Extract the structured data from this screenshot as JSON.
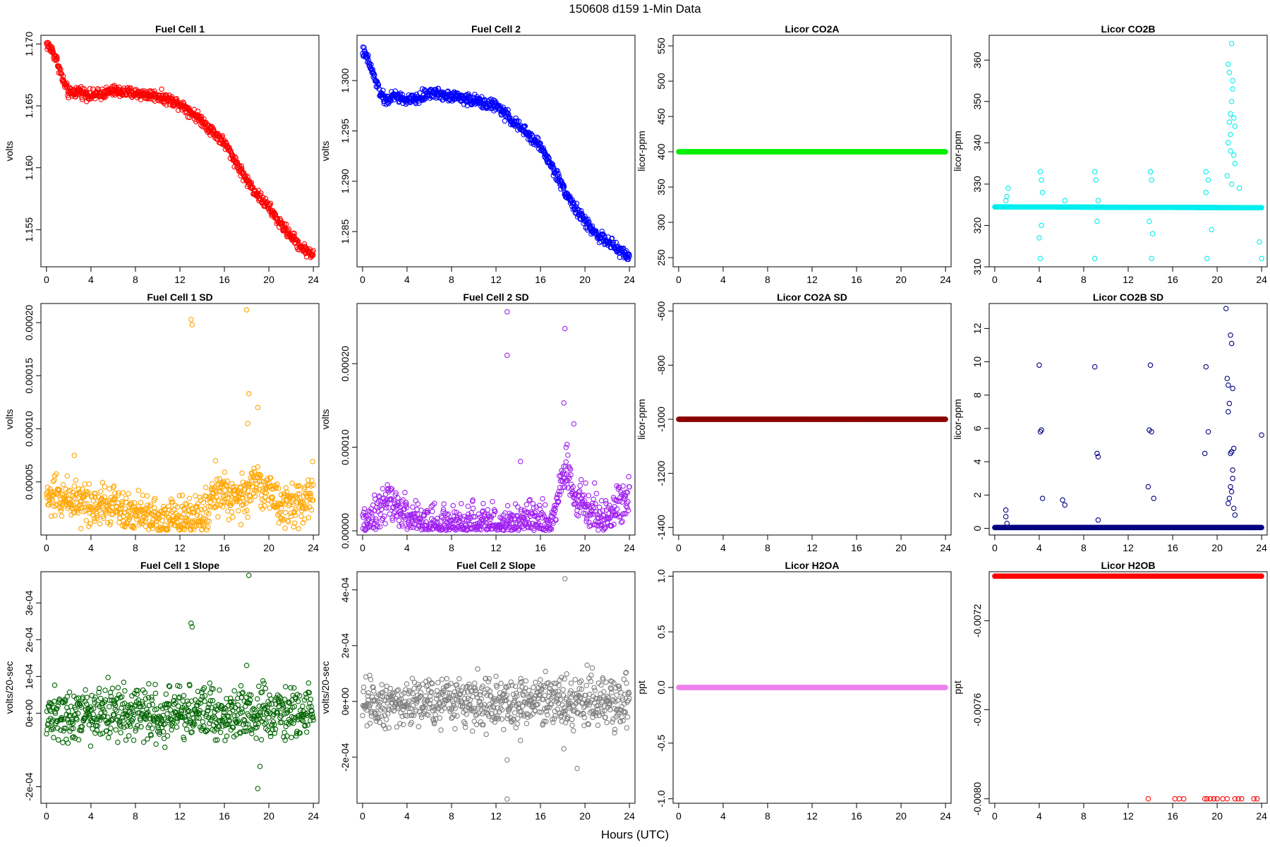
{
  "figure": {
    "title": "150608   d159   1-Min Data",
    "xlabel": "Hours (UTC)"
  },
  "chart_data": [
    {
      "type": "scatter",
      "title": "Fuel Cell 1",
      "ylabel": "volts",
      "color": "#ff0000",
      "xlim": [
        -0.5,
        24.5
      ],
      "ylim": [
        1.152,
        1.1707
      ],
      "xticks": [
        0,
        4,
        8,
        12,
        16,
        20,
        24
      ],
      "yticks": [
        1.155,
        1.16,
        1.165,
        1.17
      ],
      "yticklabels": [
        "1.155",
        "1.160",
        "1.165",
        "1.170"
      ],
      "series": [
        {
          "x": [
            0.0,
            0.5,
            1.0,
            1.5,
            2.0,
            3.0,
            4.0,
            5.0,
            6.0,
            8.0,
            10.0,
            12.0,
            13.0,
            14.0,
            16.0,
            17.0,
            18.0,
            19.0,
            20.0,
            21.0,
            22.0,
            23.0,
            24.0
          ],
          "y": [
            1.17,
            1.1695,
            1.1685,
            1.167,
            1.166,
            1.1662,
            1.1658,
            1.166,
            1.1662,
            1.166,
            1.1658,
            1.1652,
            1.1645,
            1.1638,
            1.162,
            1.1605,
            1.159,
            1.1578,
            1.1568,
            1.1555,
            1.1545,
            1.1535,
            1.153
          ]
        }
      ]
    },
    {
      "type": "scatter",
      "title": "Fuel Cell 2",
      "ylabel": "volts",
      "color": "#0000ff",
      "xlim": [
        -0.5,
        24.5
      ],
      "ylim": [
        1.2815,
        1.3045
      ],
      "xticks": [
        0,
        4,
        8,
        12,
        16,
        20,
        24
      ],
      "yticks": [
        1.285,
        1.29,
        1.295,
        1.3
      ],
      "yticklabels": [
        "1.285",
        "1.290",
        "1.295",
        "1.300"
      ],
      "series": [
        {
          "x": [
            0.0,
            0.5,
            1.0,
            1.5,
            2.0,
            3.0,
            4.0,
            5.0,
            6.0,
            8.0,
            10.0,
            12.0,
            13.0,
            14.0,
            16.0,
            17.0,
            18.0,
            19.0,
            20.0,
            21.0,
            22.0,
            23.0,
            24.0
          ],
          "y": [
            1.303,
            1.302,
            1.3005,
            1.299,
            1.298,
            1.2985,
            1.298,
            1.2982,
            1.2988,
            1.2985,
            1.298,
            1.2975,
            1.2965,
            1.2955,
            1.2935,
            1.2915,
            1.2895,
            1.2875,
            1.286,
            1.2848,
            1.284,
            1.2832,
            1.2825
          ]
        }
      ]
    },
    {
      "type": "scatter",
      "title": "Licor CO2A",
      "ylabel": "licor-ppm",
      "color": "#00ee00",
      "xlim": [
        -0.5,
        24.5
      ],
      "ylim": [
        237,
        565
      ],
      "xticks": [
        0,
        4,
        8,
        12,
        16,
        20,
        24
      ],
      "yticks": [
        250,
        300,
        350,
        400,
        450,
        500,
        550
      ],
      "yticklabels": [
        "250",
        "300",
        "350",
        "400",
        "450",
        "500",
        "550"
      ],
      "series": [
        {
          "x": [
            0,
            24
          ],
          "y": [
            400,
            400
          ]
        }
      ]
    },
    {
      "type": "scatter",
      "title": "Licor CO2B",
      "ylabel": "licor-ppm",
      "color": "#00eeee",
      "xlim": [
        -0.5,
        24.5
      ],
      "ylim": [
        310,
        366
      ],
      "xticks": [
        0,
        4,
        8,
        12,
        16,
        20,
        24
      ],
      "yticks": [
        310,
        320,
        330,
        340,
        350,
        360
      ],
      "yticklabels": [
        "310",
        "320",
        "330",
        "340",
        "350",
        "360"
      ],
      "series": [
        {
          "x": [
            0,
            24
          ],
          "y": [
            324.5,
            324.3
          ]
        }
      ],
      "outliers": {
        "x": [
          1.0,
          1.1,
          1.2,
          4.1,
          4.2,
          4.3,
          4.1,
          4.0,
          4.2,
          6.3,
          9.0,
          9.1,
          9.2,
          9.0,
          9.3,
          14.0,
          14.1,
          13.9,
          14.2,
          14.1,
          19.0,
          19.2,
          19.1,
          19.5,
          19.0,
          20.9,
          21.0,
          21.1,
          21.2,
          21.3,
          21.4,
          21.5,
          21.6,
          21.0,
          21.2,
          21.4,
          21.3,
          21.1,
          21.5,
          21.6,
          21.2,
          21.3,
          22.0,
          23.8,
          24.0
        ],
        "y": [
          326,
          327,
          329,
          333,
          331,
          328,
          312,
          317,
          320,
          326,
          333,
          331,
          321,
          312,
          326,
          333,
          331,
          321,
          318,
          312,
          333,
          331,
          312,
          319,
          328,
          332,
          340,
          345,
          338,
          350,
          355,
          346,
          344,
          359,
          347,
          353,
          364,
          357,
          337,
          335,
          342,
          330,
          329,
          316,
          312
        ]
      }
    },
    {
      "type": "scatter",
      "title": "Fuel Cell 1 SD",
      "ylabel": "volts",
      "color": "#ffa500",
      "xlim": [
        -0.5,
        24.5
      ],
      "ylim": [
        0.0,
        0.000218
      ],
      "xticks": [
        0,
        4,
        8,
        12,
        16,
        20,
        24
      ],
      "yticks": [
        5e-05,
        0.0001,
        0.00015,
        0.0002
      ],
      "yticklabels": [
        "0.00005",
        "0.00010",
        "0.00015",
        "0.00020"
      ],
      "series": [
        {
          "x": [
            0,
            2,
            4,
            6,
            8,
            10,
            12,
            14,
            15,
            16,
            17,
            18,
            19,
            20,
            21,
            22,
            23,
            24
          ],
          "y": [
            3.5e-05,
            3.5e-05,
            3e-05,
            3e-05,
            2e-05,
            1.5e-05,
            1.5e-05,
            2e-05,
            3.5e-05,
            4e-05,
            3e-05,
            4e-05,
            5e-05,
            4e-05,
            3e-05,
            2.5e-05,
            3e-05,
            4.5e-05
          ]
        }
      ],
      "outliers": {
        "x": [
          13.0,
          13.1,
          18.0,
          18.2,
          18.1,
          19.0,
          15.2,
          2.5
        ],
        "y": [
          0.000203,
          0.000198,
          0.000212,
          0.000133,
          0.000105,
          0.00012,
          7e-05,
          7.5e-05
        ]
      }
    },
    {
      "type": "scatter",
      "title": "Fuel Cell 2 SD",
      "ylabel": "volts",
      "color": "#a020f0",
      "xlim": [
        -0.5,
        24.5
      ],
      "ylim": [
        -5e-06,
        0.000272
      ],
      "xticks": [
        0,
        4,
        8,
        12,
        16,
        20,
        24
      ],
      "yticks": [
        0.0,
        0.0001,
        0.0002
      ],
      "yticklabels": [
        "0.00000",
        "0.00010",
        "0.00020"
      ],
      "series": [
        {
          "x": [
            0,
            1,
            2,
            3,
            4,
            5,
            6,
            8,
            10,
            12,
            14,
            15,
            16,
            17,
            18,
            18.5,
            19,
            20,
            21,
            22,
            23,
            24
          ],
          "y": [
            8e-06,
            2e-05,
            4e-05,
            3e-05,
            2e-05,
            1.2e-05,
            8e-06,
            5e-06,
            5e-06,
            5e-06,
            1e-05,
            1.5e-05,
            1e-05,
            1e-05,
            6e-05,
            8e-05,
            4e-05,
            3e-05,
            2e-05,
            1.5e-05,
            3e-05,
            4.5e-05
          ]
        }
      ],
      "outliers": {
        "x": [
          13.0,
          13.0,
          18.2,
          18.1,
          19.0,
          14.2,
          18.3
        ],
        "y": [
          0.000262,
          0.00021,
          0.000242,
          0.000153,
          0.000128,
          8.3e-05,
          0.0001
        ]
      }
    },
    {
      "type": "scatter",
      "title": "Licor CO2A SD",
      "ylabel": "licor-ppm",
      "color": "#8b0000",
      "xlim": [
        -0.5,
        24.5
      ],
      "ylim": [
        -1428,
        -572
      ],
      "xticks": [
        0,
        4,
        8,
        12,
        16,
        20,
        24
      ],
      "yticks": [
        -1400,
        -1200,
        -1000,
        -800,
        -600
      ],
      "yticklabels": [
        "-1400",
        "-1200",
        "-1000",
        "-800",
        "-600"
      ],
      "series": [
        {
          "x": [
            0,
            24
          ],
          "y": [
            -1000,
            -1000
          ]
        }
      ]
    },
    {
      "type": "scatter",
      "title": "Licor CO2B SD",
      "ylabel": "licor-ppm",
      "color": "#000080",
      "xlim": [
        -0.5,
        24.5
      ],
      "ylim": [
        -0.4,
        13.5
      ],
      "xticks": [
        0,
        4,
        8,
        12,
        16,
        20,
        24
      ],
      "yticks": [
        0,
        2,
        4,
        6,
        8,
        10,
        12
      ],
      "yticklabels": [
        "0",
        "2",
        "4",
        "6",
        "8",
        "10",
        "12"
      ],
      "series": [
        {
          "x": [
            0,
            24
          ],
          "y": [
            0.05,
            0.05
          ]
        }
      ],
      "outliers": {
        "x": [
          1.0,
          1.0,
          1.1,
          4.0,
          4.1,
          4.2,
          4.3,
          6.1,
          6.3,
          9.0,
          9.2,
          9.3,
          9.3,
          14.0,
          14.1,
          13.9,
          14.3,
          13.8,
          19.0,
          19.2,
          18.9,
          20.8,
          20.9,
          21.0,
          21.1,
          21.2,
          21.3,
          21.4,
          21.5,
          21.0,
          21.2,
          21.4,
          21.3,
          21.1,
          21.5,
          21.6,
          21.2,
          21.3,
          21.4,
          21.0,
          24.0
        ],
        "y": [
          1.1,
          0.7,
          0.3,
          9.8,
          5.8,
          5.9,
          1.8,
          1.7,
          1.4,
          9.7,
          4.5,
          4.3,
          0.5,
          9.8,
          5.8,
          5.9,
          1.8,
          2.5,
          9.7,
          5.8,
          4.5,
          13.2,
          9.0,
          8.6,
          7.5,
          11.6,
          11.1,
          8.4,
          4.8,
          7.0,
          4.5,
          3.5,
          2.2,
          1.8,
          1.2,
          0.8,
          2.5,
          4.6,
          3.0,
          1.5,
          5.6
        ]
      }
    },
    {
      "type": "scatter",
      "title": "Fuel Cell 1 Slope",
      "ylabel": "volts/20-sec",
      "color": "#006400",
      "xlim": [
        -0.5,
        24.5
      ],
      "ylim": [
        -0.000245,
        0.000385
      ],
      "xticks": [
        0,
        4,
        8,
        12,
        16,
        20,
        24
      ],
      "yticks": [
        -0.0002,
        0.0,
        0.0001,
        0.0002,
        0.0003
      ],
      "yticklabels": [
        "-2e-04",
        "0e+00",
        "1e-04",
        "2e-04",
        "3e-04"
      ],
      "series": [
        {
          "x": [
            0,
            2,
            4,
            6,
            8,
            10,
            12,
            14,
            16,
            17,
            18,
            19,
            20,
            21,
            22,
            23,
            24
          ],
          "y": [
            0.0,
            0.0,
            0.0,
            0.0,
            0.0,
            0.0,
            0.0,
            0.0,
            0.0,
            0.0,
            0.0,
            0.0,
            0.0,
            0.0,
            0.0,
            0.0,
            0.0
          ]
        }
      ],
      "outliers": {
        "x": [
          13.0,
          13.1,
          18.2,
          19.0,
          19.2,
          9.2,
          11.8,
          18.0
        ],
        "y": [
          0.000245,
          0.000235,
          0.000375,
          -0.000205,
          -0.000145,
          8e-05,
          7.5e-05,
          0.00013
        ]
      }
    },
    {
      "type": "scatter",
      "title": "Fuel Cell 2 Slope",
      "ylabel": "volts/20-sec",
      "color": "#808080",
      "xlim": [
        -0.5,
        24.5
      ],
      "ylim": [
        -0.000365,
        0.000465
      ],
      "xticks": [
        0,
        4,
        8,
        12,
        16,
        20,
        24
      ],
      "yticks": [
        -0.0002,
        0.0,
        0.0002,
        0.0004
      ],
      "yticklabels": [
        "-2e-04",
        "0e+00",
        "2e-04",
        "4e-04"
      ],
      "series": [
        {
          "x": [
            0,
            2,
            4,
            6,
            8,
            10,
            12,
            14,
            16,
            17,
            18,
            19,
            20,
            21,
            22,
            23,
            24
          ],
          "y": [
            0.0,
            0.0,
            0.0,
            0.0,
            0.0,
            0.0,
            0.0,
            0.0,
            0.0,
            0.0,
            0.0,
            0.0,
            0.0,
            0.0,
            0.0,
            0.0,
            0.0
          ]
        }
      ],
      "outliers": {
        "x": [
          13.0,
          13.0,
          18.2,
          14.2,
          19.3,
          18.1,
          20.2,
          12.0
        ],
        "y": [
          -0.00035,
          -0.00021,
          0.00044,
          -0.00014,
          -0.00024,
          -0.00017,
          0.00013,
          9e-05
        ]
      }
    },
    {
      "type": "scatter",
      "title": "Licor H2OA",
      "ylabel": "ppt",
      "color": "#ee82ee",
      "xlim": [
        -0.5,
        24.5
      ],
      "ylim": [
        -1.04,
        1.04
      ],
      "xticks": [
        0,
        4,
        8,
        12,
        16,
        20,
        24
      ],
      "yticks": [
        -1.0,
        -0.5,
        0.0,
        0.5,
        1.0
      ],
      "yticklabels": [
        "-1.0",
        "-0.5",
        "0.0",
        "0.5",
        "1.0"
      ],
      "series": [
        {
          "x": [
            0,
            24
          ],
          "y": [
            0,
            0
          ]
        }
      ]
    },
    {
      "type": "scatter",
      "title": "Licor H2OB",
      "ylabel": "ppt",
      "color": "#ff0000",
      "xlim": [
        -0.5,
        24.5
      ],
      "ylim": [
        -0.00802,
        -0.00698
      ],
      "xticks": [
        0,
        4,
        8,
        12,
        16,
        20,
        24
      ],
      "yticks": [
        -0.008,
        -0.0076,
        -0.0072
      ],
      "yticklabels": [
        "-0.0080",
        "-0.0076",
        "-0.0072"
      ],
      "series": [
        {
          "x": [
            0,
            24
          ],
          "y": [
            -0.007,
            -0.007
          ]
        }
      ],
      "outliers": {
        "x": [
          13.8,
          16.2,
          16.6,
          17.0,
          18.9,
          19.1,
          19.4,
          19.7,
          20.0,
          20.5,
          20.9,
          21.6,
          21.9,
          22.2,
          23.3,
          23.6
        ],
        "y": [
          -0.008,
          -0.008,
          -0.008,
          -0.008,
          -0.008,
          -0.008,
          -0.008,
          -0.008,
          -0.008,
          -0.008,
          -0.008,
          -0.008,
          -0.008,
          -0.008,
          -0.008,
          -0.008
        ]
      }
    }
  ]
}
